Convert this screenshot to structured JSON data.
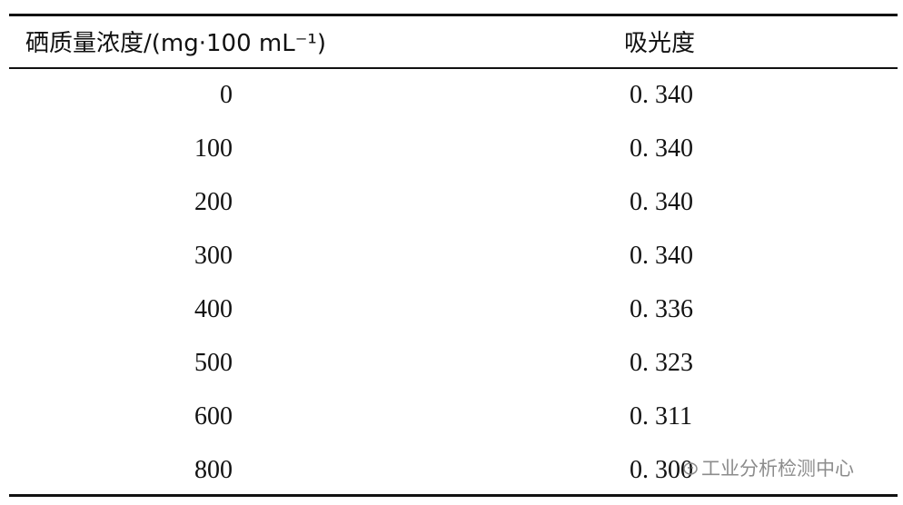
{
  "table": {
    "header": [
      "硒质量浓度/(mg·100 mL⁻¹)",
      "吸光度"
    ],
    "rows": [
      [
        "0",
        "0. 340"
      ],
      [
        "100",
        "0. 340"
      ],
      [
        "200",
        "0. 340"
      ],
      [
        "300",
        "0. 340"
      ],
      [
        "400",
        "0. 336"
      ],
      [
        "500",
        "0. 323"
      ],
      [
        "600",
        "0. 311"
      ],
      [
        "800",
        "0. 300"
      ]
    ]
  },
  "watermark": "工业分析检测中心"
}
